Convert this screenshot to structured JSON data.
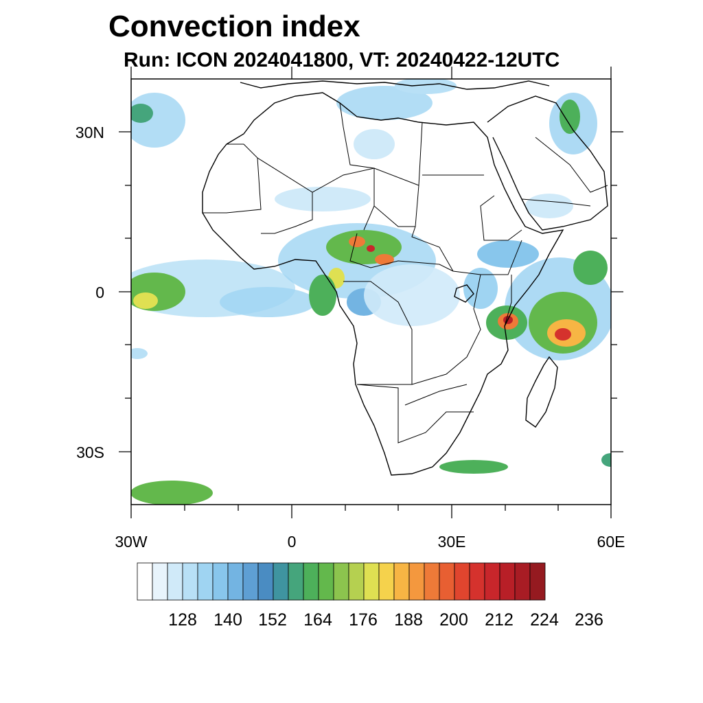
{
  "title": "Convection index",
  "subtitle": "Run: ICON 2024041800,  VT: 20240422-12UTC",
  "map": {
    "region": "Africa",
    "lon_range": [
      -30,
      60
    ],
    "lat_range": [
      -40,
      40
    ],
    "lat_labels": [
      "30N",
      "0",
      "30S"
    ],
    "lon_labels": [
      "30W",
      "0",
      "30E",
      "60E"
    ]
  },
  "colorbar": {
    "labels": [
      "128",
      "140",
      "152",
      "164",
      "176",
      "188",
      "200",
      "212",
      "224",
      "236"
    ],
    "colors": [
      "#ffffff",
      "#e8f4fc",
      "#d0eaf9",
      "#b8e0f6",
      "#9fd4f2",
      "#88c6ec",
      "#73b4e2",
      "#5e9fd4",
      "#4a8cc2",
      "#3f94a0",
      "#45a57c",
      "#4db05a",
      "#63b84c",
      "#8cc44e",
      "#b5d050",
      "#dfe052",
      "#f5d24c",
      "#f7b544",
      "#f4983e",
      "#ee7a38",
      "#e85f32",
      "#e0452e",
      "#d5322d",
      "#c8262b",
      "#b81f27",
      "#a81c24",
      "#951a20"
    ]
  }
}
